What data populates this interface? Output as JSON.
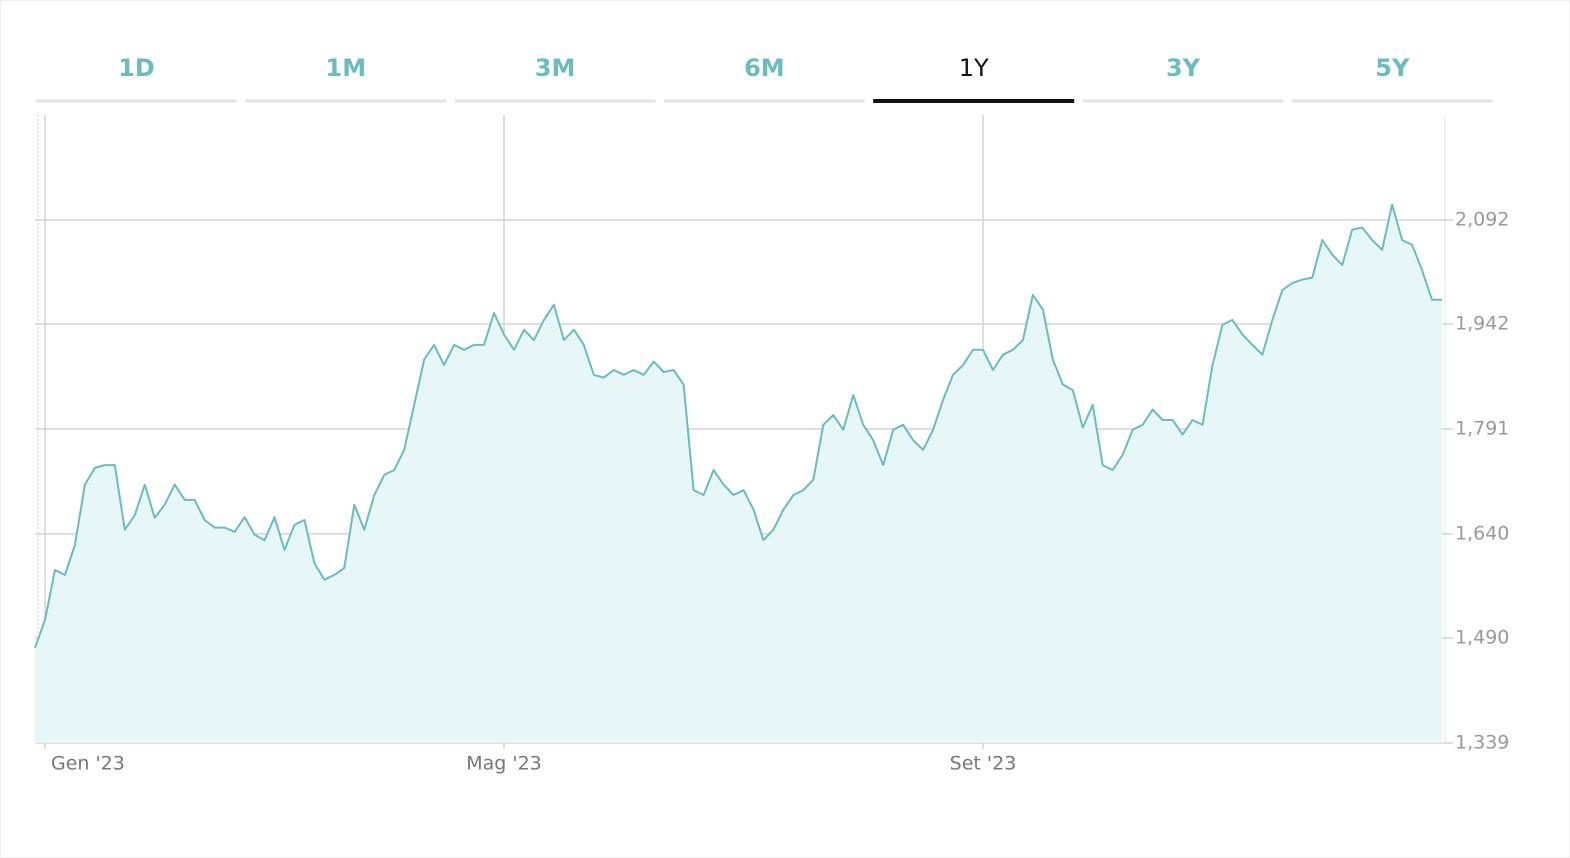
{
  "tabs": [
    "1D",
    "1M",
    "3M",
    "6M",
    "1Y",
    "3Y",
    "5Y"
  ],
  "active_tab": 4,
  "chart_data": {
    "type": "area",
    "categories": [
      null,
      "Gen '23",
      null,
      null,
      null,
      null,
      null,
      null,
      null,
      null,
      null,
      null,
      null,
      null,
      null,
      null,
      null,
      null,
      null,
      null,
      null,
      null,
      null,
      null,
      null,
      null,
      null,
      null,
      null,
      null,
      null,
      null,
      null,
      null,
      null,
      null,
      null,
      null,
      null,
      null,
      null,
      null,
      null,
      null,
      null,
      null,
      null,
      "Mag '23",
      null,
      null,
      null,
      null,
      null,
      null,
      null,
      null,
      null,
      null,
      null,
      null,
      null,
      null,
      null,
      null,
      null,
      null,
      null,
      null,
      null,
      null,
      null,
      null,
      null,
      null,
      null,
      null,
      null,
      null,
      null,
      null,
      null,
      null,
      null,
      null,
      null,
      null,
      null,
      null,
      null,
      null,
      null,
      null,
      null,
      null,
      null,
      "Set '23",
      null,
      null,
      null,
      null,
      null,
      null,
      null,
      null,
      null,
      null,
      null,
      null,
      null,
      null,
      null,
      null,
      null,
      null,
      null,
      null,
      null,
      null,
      null,
      null,
      null,
      null,
      null,
      null,
      null,
      null,
      null,
      null,
      null,
      null,
      null,
      null,
      null,
      null,
      null,
      null,
      null,
      null,
      null,
      null,
      null,
      null
    ],
    "values": [
      1476,
      1516,
      1588,
      1581,
      1624,
      1711,
      1735,
      1739,
      1739,
      1646,
      1667,
      1711,
      1663,
      1682,
      1711,
      1689,
      1689,
      1660,
      1649,
      1649,
      1643,
      1664,
      1639,
      1631,
      1664,
      1617,
      1653,
      1660,
      1598,
      1574,
      1581,
      1591,
      1682,
      1646,
      1696,
      1725,
      1732,
      1761,
      1826,
      1891,
      1912,
      1883,
      1912,
      1905,
      1912,
      1912,
      1958,
      1927,
      1905,
      1934,
      1919,
      1948,
      1970,
      1919,
      1934,
      1912,
      1869,
      1865,
      1876,
      1869,
      1876,
      1869,
      1888,
      1873,
      1876,
      1855,
      1703,
      1696,
      1732,
      1711,
      1696,
      1703,
      1675,
      1631,
      1646,
      1675,
      1696,
      1703,
      1718,
      1797,
      1811,
      1790,
      1840,
      1797,
      1775,
      1739,
      1790,
      1797,
      1775,
      1761,
      1790,
      1833,
      1869,
      1883,
      1905,
      1905,
      1876,
      1898,
      1905,
      1919,
      1984,
      1963,
      1891,
      1855,
      1847,
      1793,
      1826,
      1739,
      1732,
      1754,
      1790,
      1797,
      1819,
      1804,
      1804,
      1783,
      1804,
      1797,
      1883,
      1941,
      1948,
      1927,
      1912,
      1898,
      1948,
      1991,
      2001,
      2006,
      2009,
      2063,
      2042,
      2027,
      2078,
      2081,
      2063,
      2049,
      2114,
      2063,
      2056,
      2020,
      1977,
      1977
    ],
    "color": "#6bbcbc",
    "fill": "#e7f7f7",
    "ylim": [
      1339,
      2243
    ],
    "yticks": [
      {
        "value": 1339,
        "label": "1,339"
      },
      {
        "value": 1490,
        "label": "1,490"
      },
      {
        "value": 1640,
        "label": "1,640"
      },
      {
        "value": 1791,
        "label": "1,791"
      },
      {
        "value": 1942,
        "label": "1,942"
      },
      {
        "value": 2092,
        "label": "2,092"
      }
    ],
    "grid": true
  }
}
